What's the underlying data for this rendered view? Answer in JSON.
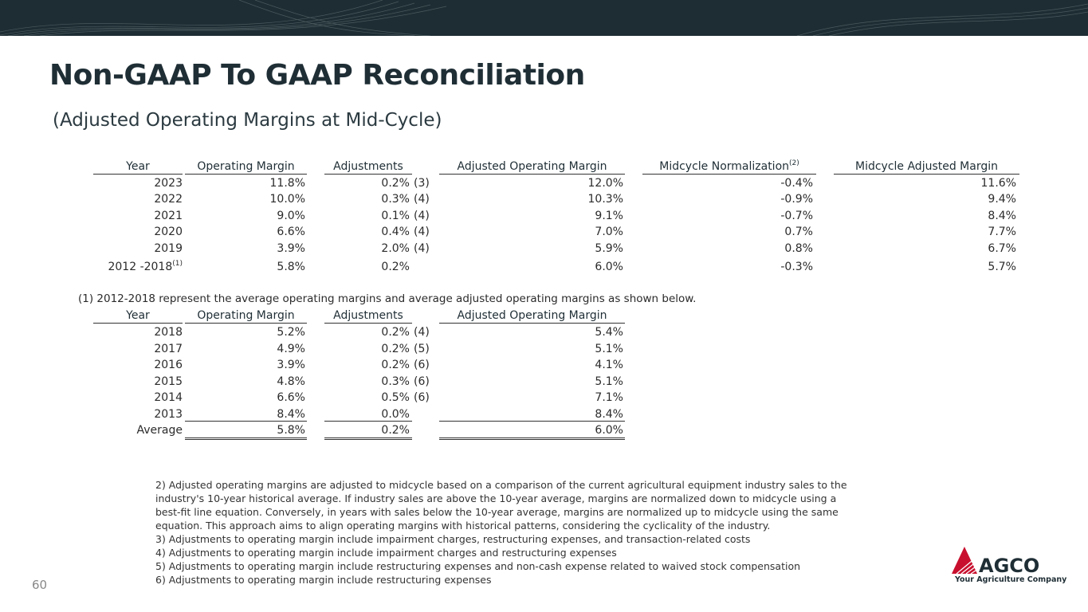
{
  "header": {
    "title": "Non-GAAP To GAAP Reconciliation",
    "subtitle": "(Adjusted Operating Margins at Mid-Cycle)"
  },
  "table1": {
    "headers": {
      "year": "Year",
      "operating_margin": "Operating Margin",
      "adjustments": "Adjustments",
      "adjusted_operating_margin": "Adjusted Operating Margin",
      "midcycle_normalization": "Midcycle Normalization",
      "midcycle_normalization_sup": "(2)",
      "midcycle_adjusted_margin": "Midcycle Adjusted Margin"
    },
    "rows": [
      {
        "year": "2023",
        "year_sup": "",
        "om": "11.8%",
        "adj": "0.2%",
        "ref": "(3)",
        "aom": "12.0%",
        "norm": "-0.4%",
        "mam": "11.6%"
      },
      {
        "year": "2022",
        "year_sup": "",
        "om": "10.0%",
        "adj": "0.3%",
        "ref": "(4)",
        "aom": "10.3%",
        "norm": "-0.9%",
        "mam": "9.4%"
      },
      {
        "year": "2021",
        "year_sup": "",
        "om": "9.0%",
        "adj": "0.1%",
        "ref": "(4)",
        "aom": "9.1%",
        "norm": "-0.7%",
        "mam": "8.4%"
      },
      {
        "year": "2020",
        "year_sup": "",
        "om": "6.6%",
        "adj": "0.4%",
        "ref": "(4)",
        "aom": "7.0%",
        "norm": "0.7%",
        "mam": "7.7%"
      },
      {
        "year": "2019",
        "year_sup": "",
        "om": "3.9%",
        "adj": "2.0%",
        "ref": "(4)",
        "aom": "5.9%",
        "norm": "0.8%",
        "mam": "6.7%"
      },
      {
        "year": "2012 -2018",
        "year_sup": "(1)",
        "om": "5.8%",
        "adj": "0.2%",
        "ref": "",
        "aom": "6.0%",
        "norm": "-0.3%",
        "mam": "5.7%"
      }
    ]
  },
  "note1": "(1) 2012-2018 represent the average operating margins and average adjusted operating margins as shown below.",
  "table2": {
    "headers": {
      "year": "Year",
      "operating_margin": "Operating Margin",
      "adjustments": "Adjustments",
      "adjusted_operating_margin": "Adjusted Operating Margin"
    },
    "rows": [
      {
        "year": "2018",
        "om": "5.2%",
        "adj": "0.2%",
        "ref": "(4)",
        "aom": "5.4%"
      },
      {
        "year": "2017",
        "om": "4.9%",
        "adj": "0.2%",
        "ref": "(5)",
        "aom": "5.1%"
      },
      {
        "year": "2016",
        "om": "3.9%",
        "adj": "0.2%",
        "ref": "(6)",
        "aom": "4.1%"
      },
      {
        "year": "2015",
        "om": "4.8%",
        "adj": "0.3%",
        "ref": "(6)",
        "aom": "5.1%"
      },
      {
        "year": "2014",
        "om": "6.6%",
        "adj": "0.5%",
        "ref": "(6)",
        "aom": "7.1%"
      },
      {
        "year": "2013",
        "om": "8.4%",
        "adj": "0.0%",
        "ref": "",
        "aom": "8.4%"
      }
    ],
    "average": {
      "label": "Average",
      "om": "5.8%",
      "adj": "0.2%",
      "aom": "6.0%"
    }
  },
  "footnotes": [
    "2) Adjusted operating margins are adjusted to midcycle based on a comparison of the current agricultural equipment industry sales to the industry's 10-year historical average. If industry sales are above the 10-year average, margins are normalized down to midcycle using a best-fit line equation. Conversely, in years with sales below the 10-year average, margins are normalized up to midcycle using the same equation. This approach aims to align operating margins with historical patterns, considering the cyclicality of the industry.",
    "3) Adjustments to operating margin include impairment charges, restructuring expenses, and transaction-related costs",
    "4) Adjustments to operating margin include impairment charges and restructuring expenses",
    "5) Adjustments to operating margin include restructuring expenses and non-cash expense related to waived stock compensation",
    "6) Adjustments to operating margin include restructuring expenses"
  ],
  "page_number": "60",
  "logo": {
    "word": "AGCO",
    "tagline": "Your Agriculture Company"
  },
  "colors": {
    "topbar": "#1d2d33",
    "title": "#1f2e35",
    "logo_red": "#c8102e"
  }
}
